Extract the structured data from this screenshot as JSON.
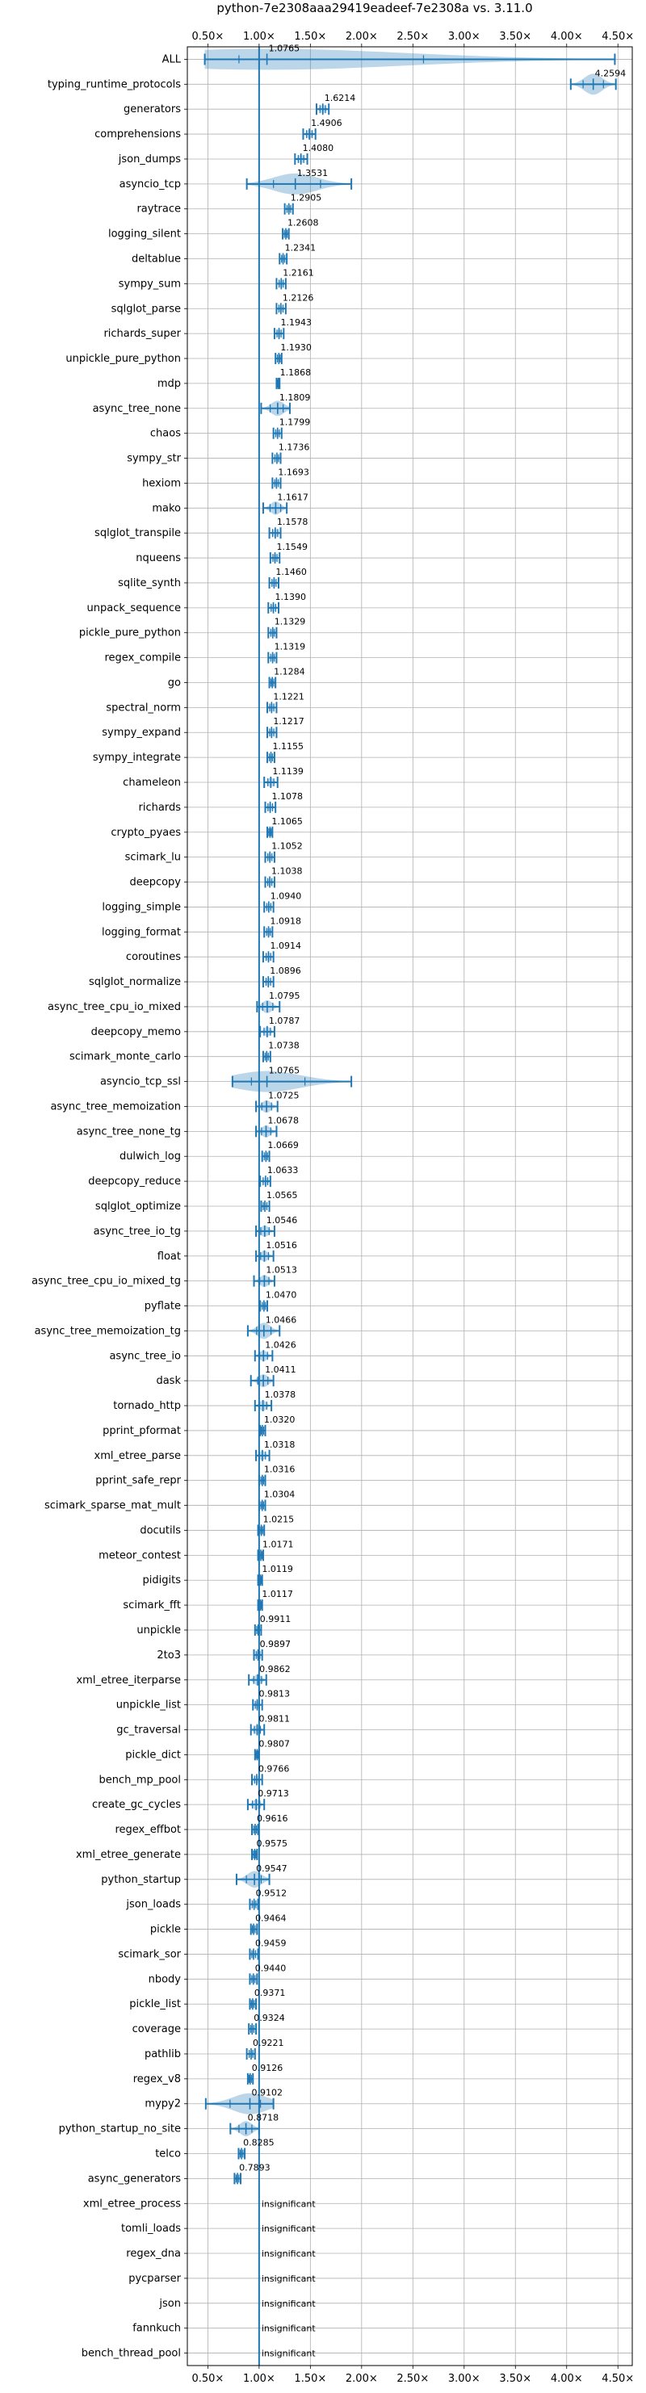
{
  "chart_data": {
    "type": "violin",
    "title": "python-7e2308aaa29419eadeef-7e2308a vs. 3.11.0",
    "xlabel": "",
    "ylabel": "",
    "xlim": [
      0.3,
      4.64
    ],
    "x_ticks": [
      0.5,
      1.0,
      1.5,
      2.0,
      2.5,
      3.0,
      3.5,
      4.0,
      4.5
    ],
    "x_tick_labels": [
      "0.50×",
      "1.00×",
      "1.50×",
      "2.00×",
      "2.50×",
      "3.00×",
      "3.50×",
      "4.00×",
      "4.50×"
    ],
    "x_tick_positions": [
      "top",
      "bottom"
    ],
    "reference_line": 1.0,
    "grid": true,
    "series_color": "#1f77b4",
    "rows": [
      {
        "name": "ALL",
        "label": "1.0765",
        "mean": 1.0765,
        "min": 0.47,
        "max": 4.47
      },
      {
        "name": "typing_runtime_protocols",
        "label": "4.2594",
        "mean": 4.2594,
        "min": 4.04,
        "max": 4.48
      },
      {
        "name": "generators",
        "label": "1.6214",
        "mean": 1.6214,
        "min": 1.56,
        "max": 1.68
      },
      {
        "name": "comprehensions",
        "label": "1.4906",
        "mean": 1.4906,
        "min": 1.43,
        "max": 1.55
      },
      {
        "name": "json_dumps",
        "label": "1.4080",
        "mean": 1.408,
        "min": 1.35,
        "max": 1.47
      },
      {
        "name": "asyncio_tcp",
        "label": "1.3531",
        "mean": 1.3531,
        "min": 0.88,
        "max": 1.9
      },
      {
        "name": "raytrace",
        "label": "1.2905",
        "mean": 1.2905,
        "min": 1.25,
        "max": 1.33
      },
      {
        "name": "logging_silent",
        "label": "1.2608",
        "mean": 1.2608,
        "min": 1.23,
        "max": 1.29
      },
      {
        "name": "deltablue",
        "label": "1.2341",
        "mean": 1.2341,
        "min": 1.2,
        "max": 1.27
      },
      {
        "name": "sympy_sum",
        "label": "1.2161",
        "mean": 1.2161,
        "min": 1.17,
        "max": 1.26
      },
      {
        "name": "sqlglot_parse",
        "label": "1.2126",
        "mean": 1.2126,
        "min": 1.17,
        "max": 1.26
      },
      {
        "name": "richards_super",
        "label": "1.1943",
        "mean": 1.1943,
        "min": 1.15,
        "max": 1.24
      },
      {
        "name": "unpickle_pure_python",
        "label": "1.1930",
        "mean": 1.193,
        "min": 1.16,
        "max": 1.22
      },
      {
        "name": "mdp",
        "label": "1.1868",
        "mean": 1.1868,
        "min": 1.17,
        "max": 1.2
      },
      {
        "name": "async_tree_none",
        "label": "1.1809",
        "mean": 1.1809,
        "min": 1.02,
        "max": 1.3
      },
      {
        "name": "chaos",
        "label": "1.1799",
        "mean": 1.1799,
        "min": 1.14,
        "max": 1.22
      },
      {
        "name": "sympy_str",
        "label": "1.1736",
        "mean": 1.1736,
        "min": 1.13,
        "max": 1.21
      },
      {
        "name": "hexiom",
        "label": "1.1693",
        "mean": 1.1693,
        "min": 1.13,
        "max": 1.21
      },
      {
        "name": "mako",
        "label": "1.1617",
        "mean": 1.1617,
        "min": 1.04,
        "max": 1.27
      },
      {
        "name": "sqlglot_transpile",
        "label": "1.1578",
        "mean": 1.1578,
        "min": 1.1,
        "max": 1.21
      },
      {
        "name": "nqueens",
        "label": "1.1549",
        "mean": 1.1549,
        "min": 1.11,
        "max": 1.2
      },
      {
        "name": "sqlite_synth",
        "label": "1.1460",
        "mean": 1.146,
        "min": 1.1,
        "max": 1.19
      },
      {
        "name": "unpack_sequence",
        "label": "1.1390",
        "mean": 1.139,
        "min": 1.09,
        "max": 1.19
      },
      {
        "name": "pickle_pure_python",
        "label": "1.1329",
        "mean": 1.1329,
        "min": 1.09,
        "max": 1.17
      },
      {
        "name": "regex_compile",
        "label": "1.1319",
        "mean": 1.1319,
        "min": 1.09,
        "max": 1.17
      },
      {
        "name": "go",
        "label": "1.1284",
        "mean": 1.1284,
        "min": 1.1,
        "max": 1.16
      },
      {
        "name": "spectral_norm",
        "label": "1.1221",
        "mean": 1.1221,
        "min": 1.08,
        "max": 1.17
      },
      {
        "name": "sympy_expand",
        "label": "1.1217",
        "mean": 1.1217,
        "min": 1.08,
        "max": 1.17
      },
      {
        "name": "sympy_integrate",
        "label": "1.1155",
        "mean": 1.1155,
        "min": 1.08,
        "max": 1.15
      },
      {
        "name": "chameleon",
        "label": "1.1139",
        "mean": 1.1139,
        "min": 1.05,
        "max": 1.18
      },
      {
        "name": "richards",
        "label": "1.1078",
        "mean": 1.1078,
        "min": 1.06,
        "max": 1.16
      },
      {
        "name": "crypto_pyaes",
        "label": "1.1065",
        "mean": 1.1065,
        "min": 1.08,
        "max": 1.13
      },
      {
        "name": "scimark_lu",
        "label": "1.1052",
        "mean": 1.1052,
        "min": 1.06,
        "max": 1.15
      },
      {
        "name": "deepcopy",
        "label": "1.1038",
        "mean": 1.1038,
        "min": 1.06,
        "max": 1.15
      },
      {
        "name": "logging_simple",
        "label": "1.0940",
        "mean": 1.094,
        "min": 1.05,
        "max": 1.14
      },
      {
        "name": "logging_format",
        "label": "1.0918",
        "mean": 1.0918,
        "min": 1.05,
        "max": 1.13
      },
      {
        "name": "coroutines",
        "label": "1.0914",
        "mean": 1.0914,
        "min": 1.04,
        "max": 1.14
      },
      {
        "name": "sqlglot_normalize",
        "label": "1.0896",
        "mean": 1.0896,
        "min": 1.04,
        "max": 1.14
      },
      {
        "name": "async_tree_cpu_io_mixed",
        "label": "1.0795",
        "mean": 1.0795,
        "min": 0.98,
        "max": 1.2
      },
      {
        "name": "deepcopy_memo",
        "label": "1.0787",
        "mean": 1.0787,
        "min": 1.01,
        "max": 1.15
      },
      {
        "name": "scimark_monte_carlo",
        "label": "1.0738",
        "mean": 1.0738,
        "min": 1.04,
        "max": 1.11
      },
      {
        "name": "asyncio_tcp_ssl",
        "label": "1.0765",
        "mean": 1.0765,
        "min": 0.74,
        "max": 1.9
      },
      {
        "name": "async_tree_memoization",
        "label": "1.0725",
        "mean": 1.0725,
        "min": 0.97,
        "max": 1.18
      },
      {
        "name": "async_tree_none_tg",
        "label": "1.0678",
        "mean": 1.0678,
        "min": 0.97,
        "max": 1.17
      },
      {
        "name": "dulwich_log",
        "label": "1.0669",
        "mean": 1.0669,
        "min": 1.03,
        "max": 1.1
      },
      {
        "name": "deepcopy_reduce",
        "label": "1.0633",
        "mean": 1.0633,
        "min": 1.01,
        "max": 1.11
      },
      {
        "name": "sqlglot_optimize",
        "label": "1.0565",
        "mean": 1.0565,
        "min": 1.02,
        "max": 1.1
      },
      {
        "name": "async_tree_io_tg",
        "label": "1.0546",
        "mean": 1.0546,
        "min": 0.97,
        "max": 1.15
      },
      {
        "name": "float",
        "label": "1.0516",
        "mean": 1.0516,
        "min": 0.97,
        "max": 1.14
      },
      {
        "name": "async_tree_cpu_io_mixed_tg",
        "label": "1.0513",
        "mean": 1.0513,
        "min": 0.95,
        "max": 1.15
      },
      {
        "name": "pyflate",
        "label": "1.0470",
        "mean": 1.047,
        "min": 1.01,
        "max": 1.08
      },
      {
        "name": "async_tree_memoization_tg",
        "label": "1.0466",
        "mean": 1.0466,
        "min": 0.89,
        "max": 1.2
      },
      {
        "name": "async_tree_io",
        "label": "1.0426",
        "mean": 1.0426,
        "min": 0.96,
        "max": 1.13
      },
      {
        "name": "dask",
        "label": "1.0411",
        "mean": 1.0411,
        "min": 0.92,
        "max": 1.14
      },
      {
        "name": "tornado_http",
        "label": "1.0378",
        "mean": 1.0378,
        "min": 0.96,
        "max": 1.12
      },
      {
        "name": "pprint_pformat",
        "label": "1.0320",
        "mean": 1.032,
        "min": 1.01,
        "max": 1.06
      },
      {
        "name": "xml_etree_parse",
        "label": "1.0318",
        "mean": 1.0318,
        "min": 0.97,
        "max": 1.1
      },
      {
        "name": "pprint_safe_repr",
        "label": "1.0316",
        "mean": 1.0316,
        "min": 1.0,
        "max": 1.06
      },
      {
        "name": "scimark_sparse_mat_mult",
        "label": "1.0304",
        "mean": 1.0304,
        "min": 1.0,
        "max": 1.06
      },
      {
        "name": "docutils",
        "label": "1.0215",
        "mean": 1.0215,
        "min": 0.99,
        "max": 1.05
      },
      {
        "name": "meteor_contest",
        "label": "1.0171",
        "mean": 1.0171,
        "min": 0.99,
        "max": 1.04
      },
      {
        "name": "pidigits",
        "label": "1.0119",
        "mean": 1.0119,
        "min": 0.99,
        "max": 1.03
      },
      {
        "name": "scimark_fft",
        "label": "1.0117",
        "mean": 1.0117,
        "min": 0.99,
        "max": 1.03
      },
      {
        "name": "unpickle",
        "label": "0.9911",
        "mean": 0.9911,
        "min": 0.96,
        "max": 1.02
      },
      {
        "name": "2to3",
        "label": "0.9897",
        "mean": 0.9897,
        "min": 0.95,
        "max": 1.03
      },
      {
        "name": "xml_etree_iterparse",
        "label": "0.9862",
        "mean": 0.9862,
        "min": 0.9,
        "max": 1.07
      },
      {
        "name": "unpickle_list",
        "label": "0.9813",
        "mean": 0.9813,
        "min": 0.94,
        "max": 1.03
      },
      {
        "name": "gc_traversal",
        "label": "0.9811",
        "mean": 0.9811,
        "min": 0.92,
        "max": 1.05
      },
      {
        "name": "pickle_dict",
        "label": "0.9807",
        "mean": 0.9807,
        "min": 0.96,
        "max": 1.0
      },
      {
        "name": "bench_mp_pool",
        "label": "0.9766",
        "mean": 0.9766,
        "min": 0.93,
        "max": 1.03
      },
      {
        "name": "create_gc_cycles",
        "label": "0.9713",
        "mean": 0.9713,
        "min": 0.89,
        "max": 1.05
      },
      {
        "name": "regex_effbot",
        "label": "0.9616",
        "mean": 0.9616,
        "min": 0.93,
        "max": 0.99
      },
      {
        "name": "xml_etree_generate",
        "label": "0.9575",
        "mean": 0.9575,
        "min": 0.93,
        "max": 0.98
      },
      {
        "name": "python_startup",
        "label": "0.9547",
        "mean": 0.9547,
        "min": 0.78,
        "max": 1.1
      },
      {
        "name": "json_loads",
        "label": "0.9512",
        "mean": 0.9512,
        "min": 0.91,
        "max": 0.99
      },
      {
        "name": "pickle",
        "label": "0.9464",
        "mean": 0.9464,
        "min": 0.92,
        "max": 0.98
      },
      {
        "name": "scimark_sor",
        "label": "0.9459",
        "mean": 0.9459,
        "min": 0.91,
        "max": 0.99
      },
      {
        "name": "nbody",
        "label": "0.9440",
        "mean": 0.944,
        "min": 0.91,
        "max": 0.98
      },
      {
        "name": "pickle_list",
        "label": "0.9371",
        "mean": 0.9371,
        "min": 0.91,
        "max": 0.97
      },
      {
        "name": "coverage",
        "label": "0.9324",
        "mean": 0.9324,
        "min": 0.9,
        "max": 0.97
      },
      {
        "name": "pathlib",
        "label": "0.9221",
        "mean": 0.9221,
        "min": 0.88,
        "max": 0.96
      },
      {
        "name": "regex_v8",
        "label": "0.9126",
        "mean": 0.9126,
        "min": 0.89,
        "max": 0.94
      },
      {
        "name": "mypy2",
        "label": "0.9102",
        "mean": 0.9102,
        "min": 0.48,
        "max": 1.14
      },
      {
        "name": "python_startup_no_site",
        "label": "0.8718",
        "mean": 0.8718,
        "min": 0.72,
        "max": 1.0
      },
      {
        "name": "telco",
        "label": "0.8285",
        "mean": 0.8285,
        "min": 0.8,
        "max": 0.86
      },
      {
        "name": "async_generators",
        "label": "0.7893",
        "mean": 0.7893,
        "min": 0.76,
        "max": 0.82
      },
      {
        "name": "xml_etree_process",
        "label": "insignificant",
        "mean": null,
        "min": null,
        "max": null
      },
      {
        "name": "tomli_loads",
        "label": "insignificant",
        "mean": null,
        "min": null,
        "max": null
      },
      {
        "name": "regex_dna",
        "label": "insignificant",
        "mean": null,
        "min": null,
        "max": null
      },
      {
        "name": "pycparser",
        "label": "insignificant",
        "mean": null,
        "min": null,
        "max": null
      },
      {
        "name": "json",
        "label": "insignificant",
        "mean": null,
        "min": null,
        "max": null
      },
      {
        "name": "fannkuch",
        "label": "insignificant",
        "mean": null,
        "min": null,
        "max": null
      },
      {
        "name": "bench_thread_pool",
        "label": "insignificant",
        "mean": null,
        "min": null,
        "max": null
      }
    ]
  }
}
